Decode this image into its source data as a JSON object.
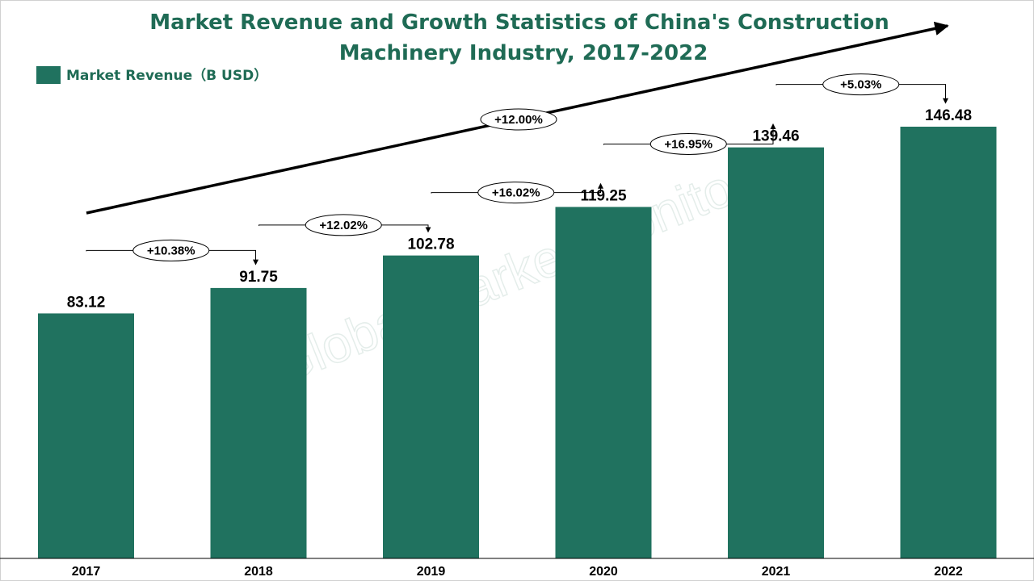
{
  "colors": {
    "bar": "#20725F",
    "title": "#1F6B55",
    "text": "#000000",
    "watermark": "#1F6B55"
  },
  "watermark": "Global Market Monitor",
  "chart_data": {
    "type": "bar",
    "title": "Market Revenue and Growth Statistics of China's Construction Machinery Industry, 2017-2022",
    "title_lines": [
      "Market Revenue and Growth Statistics of China's Construction",
      "Machinery Industry, 2017-2022"
    ],
    "legend": {
      "position": "top-left",
      "entries": [
        "Market Revenue（B USD）"
      ]
    },
    "categories": [
      "2017",
      "2018",
      "2019",
      "2020",
      "2021",
      "2022"
    ],
    "series": [
      {
        "name": "Market Revenue（B USD）",
        "values": [
          83.12,
          91.75,
          102.78,
          119.25,
          139.46,
          146.48
        ]
      }
    ],
    "value_labels": [
      "83.12",
      "91.75",
      "102.78",
      "119.25",
      "139.46",
      "146.48"
    ],
    "growth_rates": [
      "+10.38%",
      "+12.02%",
      "+16.02%",
      "+16.95%",
      "+5.03%"
    ],
    "cagr_annotation": "+12.00%",
    "ylim": [
      0,
      160
    ],
    "grid": false,
    "xlabel": "",
    "ylabel": ""
  }
}
